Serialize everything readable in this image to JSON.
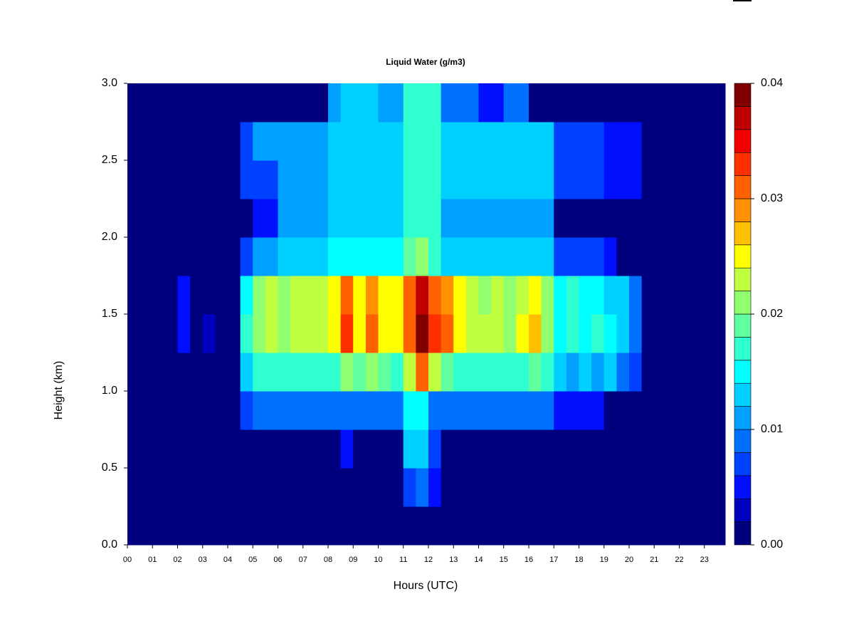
{
  "chart_data": {
    "type": "heatmap",
    "title": "Liquid Water (g/m3)",
    "x_label": "Hours (UTC)",
    "y_label": "Height (km)",
    "xlim": [
      0,
      23.83
    ],
    "ylim": [
      0,
      3
    ],
    "xticks": [
      {
        "value": 0,
        "label": "00"
      },
      {
        "value": 1,
        "label": "01"
      },
      {
        "value": 2,
        "label": "02"
      },
      {
        "value": 3,
        "label": "03"
      },
      {
        "value": 4,
        "label": "04"
      },
      {
        "value": 5,
        "label": "05"
      },
      {
        "value": 6,
        "label": "06"
      },
      {
        "value": 7,
        "label": "07"
      },
      {
        "value": 8,
        "label": "08"
      },
      {
        "value": 9,
        "label": "09"
      },
      {
        "value": 10,
        "label": "10"
      },
      {
        "value": 11,
        "label": "11"
      },
      {
        "value": 12,
        "label": "12"
      },
      {
        "value": 13,
        "label": "13"
      },
      {
        "value": 14,
        "label": "14"
      },
      {
        "value": 15,
        "label": "15"
      },
      {
        "value": 16,
        "label": "16"
      },
      {
        "value": 17,
        "label": "17"
      },
      {
        "value": 18,
        "label": "18"
      },
      {
        "value": 19,
        "label": "19"
      },
      {
        "value": 20,
        "label": "20"
      },
      {
        "value": 21,
        "label": "21"
      },
      {
        "value": 22,
        "label": "22"
      },
      {
        "value": 23,
        "label": "23"
      }
    ],
    "yticks": [
      {
        "value": 0,
        "label": "0.0"
      },
      0.5,
      {
        "value": 1,
        "label": "1.0"
      },
      1.5,
      {
        "value": 2,
        "label": "2.0"
      },
      2.5,
      {
        "value": 3,
        "label": "3.0"
      }
    ],
    "x_edges": [
      0,
      0.5,
      1,
      1.5,
      2,
      2.5,
      3,
      3.5,
      4,
      4.5,
      5,
      5.5,
      6,
      6.5,
      7,
      7.5,
      8,
      8.5,
      9,
      9.5,
      10,
      10.5,
      11,
      11.5,
      12,
      12.5,
      13,
      13.5,
      14,
      14.5,
      15,
      15.5,
      16,
      16.5,
      17,
      17.5,
      18,
      18.5,
      19,
      19.5,
      20,
      20.5,
      21,
      21.5,
      22,
      22.5,
      23,
      23.5,
      23.83
    ],
    "y_edges": [
      0,
      0.25,
      0.5,
      0.75,
      1,
      1.25,
      1.5,
      1.75,
      2,
      2.25,
      2.5,
      2.75,
      3
    ],
    "z": [
      [
        0,
        0,
        0,
        0,
        0,
        0,
        0,
        0,
        0,
        0,
        0,
        0,
        0,
        0,
        0,
        0,
        0,
        0,
        0,
        0,
        0,
        0,
        0,
        0,
        0,
        0,
        0,
        0,
        0,
        0,
        0,
        0,
        0,
        0,
        0,
        0,
        0,
        0,
        0,
        0,
        0,
        0,
        0,
        0,
        0,
        0,
        0,
        0
      ],
      [
        0,
        0,
        0,
        0,
        0,
        0,
        0,
        0,
        0,
        0,
        0,
        0,
        0,
        0,
        0,
        0,
        0,
        0,
        0,
        0,
        0,
        0,
        0.006,
        0.008,
        0.004,
        0,
        0,
        0,
        0,
        0,
        0,
        0,
        0,
        0,
        0,
        0,
        0,
        0,
        0,
        0,
        0,
        0,
        0,
        0,
        0,
        0,
        0,
        0
      ],
      [
        0,
        0,
        0,
        0,
        0,
        0,
        0,
        0,
        0,
        0,
        0,
        0,
        0,
        0,
        0,
        0,
        0,
        0.004,
        0,
        0,
        0,
        0,
        0.012,
        0.012,
        0.006,
        0,
        0,
        0,
        0,
        0,
        0,
        0,
        0,
        0,
        0,
        0,
        0,
        0,
        0,
        0,
        0,
        0,
        0,
        0,
        0,
        0,
        0,
        0
      ],
      [
        0,
        0,
        0,
        0,
        0,
        0,
        0,
        0,
        0,
        0.006,
        0.008,
        0.008,
        0.008,
        0.008,
        0.008,
        0.008,
        0.008,
        0.008,
        0.008,
        0.008,
        0.008,
        0.008,
        0.014,
        0.014,
        0.008,
        0.008,
        0.008,
        0.008,
        0.008,
        0.008,
        0.008,
        0.008,
        0.008,
        0.008,
        0.004,
        0.004,
        0.004,
        0.004,
        0,
        0,
        0,
        0,
        0,
        0,
        0,
        0,
        0,
        0
      ],
      [
        0,
        0,
        0,
        0,
        0,
        0,
        0,
        0,
        0,
        0.012,
        0.016,
        0.016,
        0.016,
        0.016,
        0.016,
        0.016,
        0.016,
        0.02,
        0.018,
        0.02,
        0.018,
        0.016,
        0.022,
        0.03,
        0.022,
        0.018,
        0.016,
        0.016,
        0.016,
        0.016,
        0.016,
        0.016,
        0.018,
        0.016,
        0.012,
        0.01,
        0.012,
        0.01,
        0.012,
        0.008,
        0.006,
        0,
        0,
        0,
        0,
        0,
        0,
        0
      ],
      [
        0,
        0,
        0,
        0,
        0.004,
        0,
        0.002,
        0,
        0,
        0.016,
        0.02,
        0.022,
        0.02,
        0.022,
        0.022,
        0.022,
        0.024,
        0.032,
        0.024,
        0.03,
        0.024,
        0.024,
        0.03,
        0.038,
        0.032,
        0.03,
        0.024,
        0.022,
        0.022,
        0.022,
        0.02,
        0.024,
        0.026,
        0.02,
        0.014,
        0.016,
        0.014,
        0.016,
        0.014,
        0.012,
        0.008,
        0,
        0,
        0,
        0,
        0,
        0,
        0
      ],
      [
        0,
        0,
        0,
        0,
        0.004,
        0,
        0,
        0,
        0,
        0.014,
        0.02,
        0.022,
        0.02,
        0.022,
        0.022,
        0.022,
        0.024,
        0.03,
        0.024,
        0.028,
        0.024,
        0.024,
        0.03,
        0.036,
        0.03,
        0.028,
        0.024,
        0.022,
        0.02,
        0.022,
        0.02,
        0.022,
        0.024,
        0.02,
        0.014,
        0.016,
        0.014,
        0.014,
        0.012,
        0.012,
        0.008,
        0,
        0,
        0,
        0,
        0,
        0,
        0
      ],
      [
        0,
        0,
        0,
        0,
        0,
        0,
        0,
        0,
        0,
        0.006,
        0.01,
        0.01,
        0.012,
        0.012,
        0.012,
        0.012,
        0.014,
        0.014,
        0.014,
        0.014,
        0.014,
        0.014,
        0.018,
        0.02,
        0.016,
        0.012,
        0.012,
        0.012,
        0.012,
        0.012,
        0.012,
        0.012,
        0.012,
        0.012,
        0.006,
        0.006,
        0.006,
        0.006,
        0.004,
        0,
        0,
        0,
        0,
        0,
        0,
        0,
        0,
        0
      ],
      [
        0,
        0,
        0,
        0,
        0,
        0,
        0,
        0,
        0,
        0,
        0.004,
        0.004,
        0.01,
        0.01,
        0.01,
        0.01,
        0.012,
        0.012,
        0.012,
        0.012,
        0.012,
        0.012,
        0.016,
        0.016,
        0.016,
        0.01,
        0.01,
        0.01,
        0.01,
        0.01,
        0.01,
        0.01,
        0.01,
        0.01,
        0,
        0,
        0,
        0,
        0,
        0,
        0,
        0,
        0,
        0,
        0,
        0,
        0,
        0
      ],
      [
        0,
        0,
        0,
        0,
        0,
        0,
        0,
        0,
        0,
        0.006,
        0.006,
        0.006,
        0.01,
        0.01,
        0.01,
        0.01,
        0.012,
        0.012,
        0.012,
        0.012,
        0.012,
        0.012,
        0.016,
        0.016,
        0.016,
        0.012,
        0.012,
        0.012,
        0.012,
        0.012,
        0.012,
        0.012,
        0.012,
        0.012,
        0.006,
        0.006,
        0.006,
        0.006,
        0.004,
        0.004,
        0.004,
        0,
        0,
        0,
        0,
        0,
        0,
        0
      ],
      [
        0,
        0,
        0,
        0,
        0,
        0,
        0,
        0,
        0,
        0.006,
        0.01,
        0.01,
        0.01,
        0.01,
        0.01,
        0.01,
        0.012,
        0.012,
        0.012,
        0.012,
        0.012,
        0.012,
        0.016,
        0.016,
        0.016,
        0.012,
        0.012,
        0.012,
        0.012,
        0.012,
        0.012,
        0.012,
        0.012,
        0.012,
        0.006,
        0.006,
        0.006,
        0.006,
        0.004,
        0.004,
        0.004,
        0,
        0,
        0,
        0,
        0,
        0,
        0
      ],
      [
        0,
        0,
        0,
        0,
        0,
        0,
        0,
        0,
        0,
        0,
        0,
        0,
        0,
        0,
        0,
        0,
        0.01,
        0.012,
        0.012,
        0.012,
        0.01,
        0.01,
        0.016,
        0.016,
        0.016,
        0.008,
        0.008,
        0.008,
        0.004,
        0.004,
        0.008,
        0.008,
        0,
        0,
        0,
        0,
        0,
        0,
        0,
        0,
        0,
        0,
        0,
        0,
        0,
        0,
        0,
        0
      ]
    ],
    "colorbar": {
      "levels": [
        0,
        0.002,
        0.004,
        0.006,
        0.008,
        0.01,
        0.012,
        0.014,
        0.016,
        0.018,
        0.02,
        0.022,
        0.024,
        0.026,
        0.028,
        0.03,
        0.032,
        0.034,
        0.036,
        0.038,
        0.04
      ],
      "colors": [
        "#00007f",
        "#0000c0",
        "#0010ff",
        "#0040ff",
        "#0070ff",
        "#00a0ff",
        "#00d0ff",
        "#00ffff",
        "#30ffd0",
        "#60ffa0",
        "#90ff70",
        "#c0ff40",
        "#ffff00",
        "#ffc000",
        "#ff9000",
        "#ff6000",
        "#ff3000",
        "#f00000",
        "#c00000",
        "#800000"
      ],
      "ticks": [
        {
          "value": 0,
          "label": "0.00"
        },
        {
          "value": 0.01,
          "label": "0.01"
        },
        {
          "value": 0.02,
          "label": "0.02"
        },
        {
          "value": 0.03,
          "label": "0.03"
        },
        {
          "value": 0.04,
          "label": "0.04"
        }
      ]
    }
  }
}
